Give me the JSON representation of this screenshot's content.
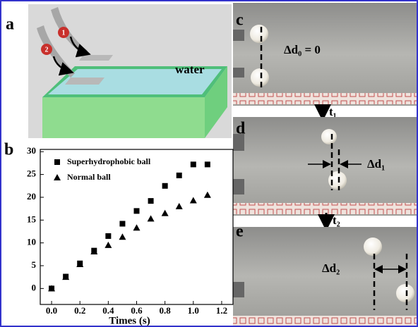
{
  "panels": {
    "a": {
      "label": "a",
      "water": "water",
      "balls": [
        "1",
        "2"
      ]
    },
    "b": {
      "label": "b"
    },
    "c": {
      "label": "c",
      "annotation": "Δd₀ = 0",
      "step": "t₁"
    },
    "d": {
      "label": "d",
      "annotation": "Δd₁",
      "step": "t₂"
    },
    "e": {
      "label": "e",
      "annotation": "Δd₂"
    }
  },
  "chart_data": {
    "type": "scatter",
    "x_label": "Times (s)",
    "series": [
      {
        "name": "Superhydrophobic ball",
        "color": "#000000",
        "marker": "square",
        "x": [
          0,
          0.1,
          0.2,
          0.3,
          0.4,
          0.5,
          0.6,
          0.7,
          0.8,
          0.9,
          1.0,
          1.1
        ],
        "values": [
          0,
          2.6,
          5.5,
          8.3,
          11.5,
          14.2,
          17,
          19.2,
          22.5,
          24.8,
          27.2,
          27.2
        ]
      },
      {
        "name": "Normal ball",
        "color": "#000000",
        "marker": "triangle",
        "x": [
          0,
          0.1,
          0.2,
          0.3,
          0.4,
          0.5,
          0.6,
          0.7,
          0.8,
          0.9,
          1.0,
          1.1
        ],
        "values": [
          0,
          2.5,
          5.3,
          8.1,
          9.5,
          11.3,
          13.3,
          15.3,
          16.5,
          18,
          19.3,
          20.5
        ]
      }
    ],
    "xlim": [
      -0.08,
      1.28
    ],
    "xticks": [
      {
        "value": 0,
        "label": "0.0"
      },
      0.2,
      0.4,
      0.6,
      0.8,
      {
        "value": 1,
        "label": "1.0"
      },
      1.2
    ],
    "ylim": [
      -3.5,
      30.5
    ],
    "yticks": [
      0,
      5,
      10,
      15,
      20,
      25,
      30
    ],
    "legend": "upper-left"
  }
}
